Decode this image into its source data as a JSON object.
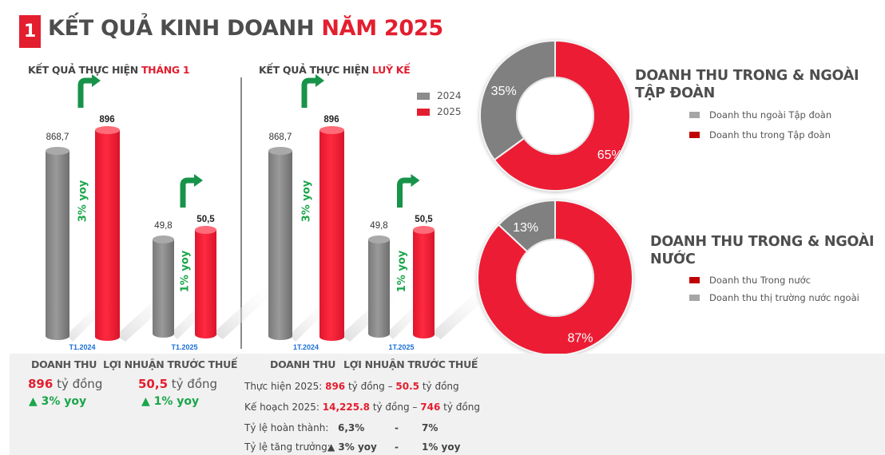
{
  "header": {
    "badge": "1",
    "title_main": "KẾT QUẢ KINH DOANH ",
    "title_highlight": "NĂM 2025"
  },
  "colors": {
    "accent_red": "#e31e2f",
    "gray": "#8c8c8c",
    "green": "#1aa64a",
    "category_blue": "#1a6fd6"
  },
  "chart_data": [
    {
      "type": "bar",
      "title": "KẾT QUẢ THỰC HIỆN THÁNG 1",
      "title_main": "KẾT QUẢ THỰC HIỆN ",
      "title_highlight": "THÁNG 1",
      "categories": [
        "T1.2024",
        "T1.2025"
      ],
      "series": [
        {
          "name": "2024",
          "values": [
            868.7,
            49.8
          ],
          "labels": [
            "868,7",
            "49,8"
          ]
        },
        {
          "name": "2025",
          "values": [
            896,
            50.5
          ],
          "labels": [
            "896",
            "50,5"
          ]
        }
      ],
      "annotations": [
        "3% yoy",
        "1% yoy"
      ],
      "xlabel": "",
      "ylabel": ""
    },
    {
      "type": "bar",
      "title": "KẾT QUẢ THỰC HIỆN LUỸ KẾ",
      "title_main": "KẾT QUẢ THỰC HIỆN ",
      "title_highlight": "LUỸ KẾ",
      "categories": [
        "1T.2024",
        "1T.2025"
      ],
      "series": [
        {
          "name": "2024",
          "values": [
            868.7,
            49.8
          ],
          "labels": [
            "868,7",
            "49,8"
          ]
        },
        {
          "name": "2025",
          "values": [
            896,
            50.5
          ],
          "labels": [
            "896",
            "50,5"
          ]
        }
      ],
      "annotations": [
        "3% yoy",
        "1% yoy"
      ],
      "legend": [
        "2024",
        "2025"
      ],
      "legend_position": "top-right",
      "xlabel": "",
      "ylabel": ""
    },
    {
      "type": "pie",
      "title": "DOANH THU TRONG & NGOÀI TẬP ĐOÀN",
      "title_line1": "DOANH THU TRONG & NGOÀI",
      "title_line2": "TẬP ĐOÀN",
      "slices": [
        {
          "name": "Doanh thu ngoài Tập đoàn",
          "value": 35,
          "label": "35%",
          "color": "#808080"
        },
        {
          "name": "Doanh thu trong Tập đoàn",
          "value": 65,
          "label": "65%",
          "color": "#ec1c34"
        }
      ],
      "legend_order": [
        "Doanh thu ngoài Tập đoàn",
        "Doanh thu trong Tập đoàn"
      ],
      "legend_position": "right"
    },
    {
      "type": "pie",
      "title": "DOANH THU TRONG & NGOÀI NƯỚC",
      "title_line1": "DOANH THU TRONG & NGOÀI",
      "title_line2": "NƯỚC",
      "slices": [
        {
          "name": "Doanh thu thị trường nước ngoài",
          "value": 13,
          "label": "13%",
          "color": "#808080"
        },
        {
          "name": "Doanh thu Trong nước",
          "value": 87,
          "label": "87%",
          "color": "#ec1c34"
        }
      ],
      "legend_order": [
        "Doanh thu Trong nước",
        "Doanh thu thị trường nước ngoài"
      ],
      "legend_position": "right"
    }
  ],
  "legend_labels": {
    "pie1": [
      "Doanh thu ngoài Tập đoàn",
      "Doanh thu trong Tập đoàn"
    ],
    "pie2": [
      "Doanh thu Trong nước",
      "Doanh thu thị trường nước ngoài"
    ]
  },
  "summary_month": {
    "col1_header": "DOANH THU",
    "col2_header": "LỢI NHUẬN TRƯỚC THUẾ",
    "revenue_value": "896",
    "revenue_unit": " tỷ đồng",
    "revenue_yoy": "▲ 3% yoy",
    "profit_value": "50,5",
    "profit_unit": " tỷ đồng",
    "profit_yoy": "▲ 1% yoy"
  },
  "summary_cumulative": {
    "col1_header": "DOANH THU",
    "col2_header": "LỢI NHUẬN TRƯỚC THUẾ",
    "rows": {
      "actual": {
        "label": "Thực hiện 2025: ",
        "revenue": "896",
        "mid": " tỷ đồng – ",
        "profit": "50.5",
        "unit": " tỷ đồng"
      },
      "plan": {
        "label": "Kế hoạch 2025: ",
        "revenue": "14,225.8",
        "mid": " tỷ đồng – ",
        "profit": "746",
        "unit": " tỷ đồng"
      },
      "completion": {
        "label": "Tỷ lệ hoàn thành:",
        "revenue": "6,3%",
        "sep": "-",
        "profit": "7%"
      },
      "growth": {
        "label": "Tỷ lệ tăng trưởng:",
        "revenue": "▲ 3% yoy",
        "sep": "-",
        "profit": "1% yoy"
      }
    }
  }
}
